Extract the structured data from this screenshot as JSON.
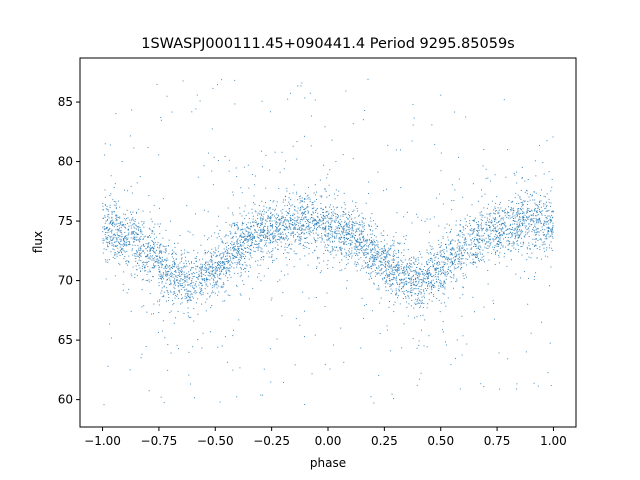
{
  "chart_data": {
    "type": "scatter",
    "title": "1SWASPJ000111.45+090441.4 Period 9295.85059s",
    "xlabel": "phase",
    "ylabel": "flux",
    "xlim": [
      -1.1,
      1.1
    ],
    "ylim": [
      57.7,
      88.7
    ],
    "x_ticks": [
      -1.0,
      -0.75,
      -0.5,
      -0.25,
      0.0,
      0.25,
      0.5,
      0.75,
      1.0
    ],
    "x_tick_labels": [
      "−1.00",
      "−0.75",
      "−0.50",
      "−0.25",
      "0.00",
      "0.25",
      "0.50",
      "0.75",
      "1.00"
    ],
    "y_ticks": [
      60,
      65,
      70,
      75,
      80,
      85
    ],
    "y_tick_labels": [
      "60",
      "65",
      "70",
      "75",
      "80",
      "85"
    ],
    "grid": false,
    "legend": "none",
    "marker_color": "#1f77b4",
    "series": [
      {
        "phase_range": [
          -1.0,
          1.0
        ],
        "curve_x": [
          -1.0,
          -0.9,
          -0.8,
          -0.7,
          -0.6,
          -0.5,
          -0.4,
          -0.3,
          -0.2,
          -0.1,
          0.0,
          0.1,
          0.2,
          0.3,
          0.4,
          0.5,
          0.6,
          0.7,
          0.8,
          0.9,
          1.0
        ],
        "curve_y": [
          74.6,
          73.8,
          72.5,
          70.6,
          69.8,
          71.1,
          72.8,
          74.0,
          74.6,
          75.0,
          74.6,
          73.8,
          72.5,
          70.6,
          69.8,
          71.1,
          72.8,
          74.0,
          74.6,
          75.0,
          74.6
        ],
        "core_scatter": 1.2,
        "outlier_range": [
          59.5,
          87.0
        ]
      }
    ]
  }
}
